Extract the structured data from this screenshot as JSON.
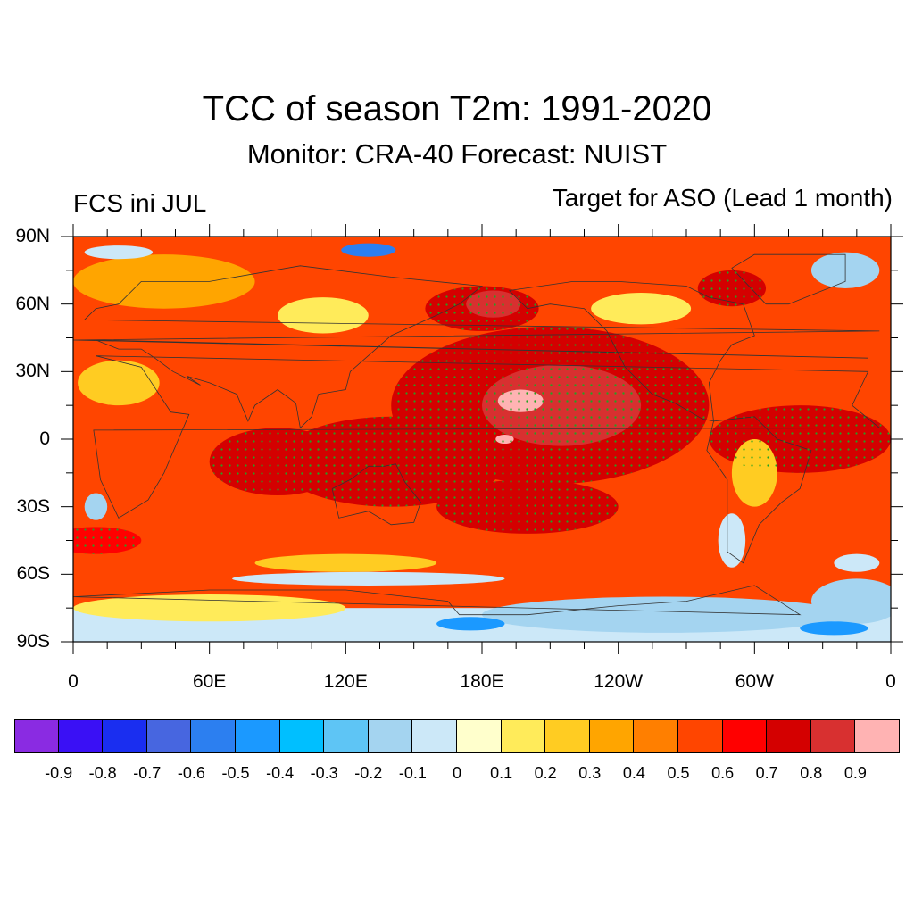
{
  "title": "TCC of season T2m: 1991-2020",
  "subtitle": "Monitor: CRA-40   Forecast: NUIST",
  "left_label": "FCS ini JUL",
  "right_label": "Target for ASO (Lead 1 month)",
  "lat_ticks": [
    {
      "label": "90N",
      "value": 90
    },
    {
      "label": "60N",
      "value": 60
    },
    {
      "label": "30N",
      "value": 30
    },
    {
      "label": "0",
      "value": 0
    },
    {
      "label": "30S",
      "value": -30
    },
    {
      "label": "60S",
      "value": -60
    },
    {
      "label": "90S",
      "value": -90
    }
  ],
  "lon_ticks": [
    {
      "label": "0",
      "value": 0
    },
    {
      "label": "60E",
      "value": 60
    },
    {
      "label": "120E",
      "value": 120
    },
    {
      "label": "180E",
      "value": 180
    },
    {
      "label": "120W",
      "value": 240
    },
    {
      "label": "60W",
      "value": 300
    },
    {
      "label": "0",
      "value": 360
    }
  ],
  "colorbar": {
    "colors": [
      "#8a2be2",
      "#3a10f5",
      "#1a2ef0",
      "#4766e0",
      "#2c7ff0",
      "#1b99ff",
      "#00bfff",
      "#5ec5f5",
      "#a4d4f0",
      "#cce8f8",
      "#ffffcc",
      "#ffeb5a",
      "#ffcc22",
      "#ffa500",
      "#ff7f00",
      "#ff4500",
      "#ff0000",
      "#d40000",
      "#d83030",
      "#ffb3b3"
    ],
    "labels": [
      "-0.9",
      "-0.8",
      "-0.7",
      "-0.6",
      "-0.5",
      "-0.4",
      "-0.3",
      "-0.2",
      "-0.1",
      "0",
      "0.1",
      "0.2",
      "0.3",
      "0.4",
      "0.5",
      "0.6",
      "0.7",
      "0.8",
      "0.9"
    ]
  },
  "map_regions": [
    {
      "level": 0.5,
      "shape": "rect",
      "lon": [
        0,
        360
      ],
      "lat": [
        -90,
        90
      ]
    },
    {
      "level": 0.3,
      "shape": "ellipse",
      "lon": 40,
      "lat": 70,
      "rlon": 40,
      "rlat": 12
    },
    {
      "level": 0.1,
      "shape": "ellipse",
      "lon": 110,
      "lat": 55,
      "rlon": 20,
      "rlat": 8
    },
    {
      "level": 0.1,
      "shape": "ellipse",
      "lon": 250,
      "lat": 58,
      "rlon": 22,
      "rlat": 7
    },
    {
      "level": 0.2,
      "shape": "ellipse",
      "lon": 20,
      "lat": 25,
      "rlon": 18,
      "rlat": 10
    },
    {
      "level": 0.7,
      "shape": "ellipse",
      "lon": 210,
      "lat": 15,
      "rlon": 70,
      "rlat": 35
    },
    {
      "level": 0.7,
      "shape": "ellipse",
      "lon": 140,
      "lat": -10,
      "rlon": 50,
      "rlat": 20
    },
    {
      "level": 0.7,
      "shape": "ellipse",
      "lon": 90,
      "lat": -10,
      "rlon": 30,
      "rlat": 15
    },
    {
      "level": 0.7,
      "shape": "ellipse",
      "lon": 180,
      "lat": 58,
      "rlon": 25,
      "rlat": 10
    },
    {
      "level": 0.7,
      "shape": "ellipse",
      "lon": 320,
      "lat": 0,
      "rlon": 40,
      "rlat": 15
    },
    {
      "level": 0.7,
      "shape": "ellipse",
      "lon": 290,
      "lat": 67,
      "rlon": 15,
      "rlat": 8
    },
    {
      "level": 0.7,
      "shape": "ellipse",
      "lon": 200,
      "lat": -30,
      "rlon": 40,
      "rlat": 12
    },
    {
      "level": 0.6,
      "shape": "ellipse",
      "lon": 10,
      "lat": -45,
      "rlon": 20,
      "rlat": 6
    },
    {
      "level": 0.8,
      "shape": "ellipse",
      "lon": 215,
      "lat": 15,
      "rlon": 35,
      "rlat": 18
    },
    {
      "level": 0.8,
      "shape": "ellipse",
      "lon": 185,
      "lat": 60,
      "rlon": 12,
      "rlat": 6
    },
    {
      "level": 0.9,
      "shape": "ellipse",
      "lon": 197,
      "lat": 17,
      "rlon": 10,
      "rlat": 5
    },
    {
      "level": 0.9,
      "shape": "ellipse",
      "lon": 190,
      "lat": 0,
      "rlon": 4,
      "rlat": 2
    },
    {
      "level": 0.2,
      "shape": "ellipse",
      "lon": 120,
      "lat": -55,
      "rlon": 40,
      "rlat": 4
    },
    {
      "level": 0.2,
      "shape": "ellipse",
      "lon": 300,
      "lat": -15,
      "rlon": 10,
      "rlat": 15
    },
    {
      "level": -0.1,
      "shape": "rect",
      "lon": [
        0,
        360
      ],
      "lat": [
        -90,
        -75
      ]
    },
    {
      "level": 0.1,
      "shape": "ellipse",
      "lon": 60,
      "lat": -75,
      "rlon": 60,
      "rlat": 6
    },
    {
      "level": -0.2,
      "shape": "ellipse",
      "lon": 260,
      "lat": -78,
      "rlon": 80,
      "rlat": 8
    },
    {
      "level": -0.2,
      "shape": "ellipse",
      "lon": 345,
      "lat": -72,
      "rlon": 20,
      "rlat": 10
    },
    {
      "level": -0.1,
      "shape": "ellipse",
      "lon": 130,
      "lat": -62,
      "rlon": 60,
      "rlat": 3
    },
    {
      "level": -0.1,
      "shape": "ellipse",
      "lon": 345,
      "lat": -55,
      "rlon": 10,
      "rlat": 4
    },
    {
      "level": -0.5,
      "shape": "ellipse",
      "lon": 175,
      "lat": -82,
      "rlon": 15,
      "rlat": 3
    },
    {
      "level": -0.5,
      "shape": "ellipse",
      "lon": 335,
      "lat": -84,
      "rlon": 15,
      "rlat": 3
    },
    {
      "level": -0.6,
      "shape": "ellipse",
      "lon": 130,
      "lat": 84,
      "rlon": 12,
      "rlat": 3
    },
    {
      "level": -0.1,
      "shape": "ellipse",
      "lon": 20,
      "lat": 83,
      "rlon": 15,
      "rlat": 3
    },
    {
      "level": -0.2,
      "shape": "ellipse",
      "lon": 340,
      "lat": 75,
      "rlon": 15,
      "rlat": 8
    },
    {
      "level": -0.2,
      "shape": "ellipse",
      "lon": 10,
      "lat": -30,
      "rlon": 5,
      "rlat": 6
    },
    {
      "level": -0.1,
      "shape": "ellipse",
      "lon": 290,
      "lat": -45,
      "rlon": 6,
      "rlat": 12
    }
  ]
}
